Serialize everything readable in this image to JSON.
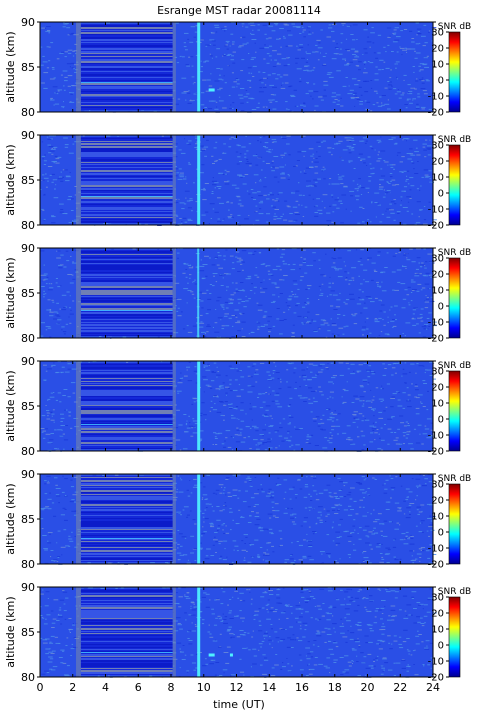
{
  "chart_data": {
    "type": "heatmap",
    "title": "Esrange MST radar 20081114",
    "xlabel": "time (UT)",
    "ylabel": "altitude (km)",
    "xlim": [
      0,
      24
    ],
    "ylim": [
      80,
      90
    ],
    "xticks": [
      "0",
      "2",
      "4",
      "6",
      "8",
      "10",
      "12",
      "14",
      "16",
      "18",
      "20",
      "22",
      "24"
    ],
    "yticks": [
      "80",
      "85",
      "90"
    ],
    "colorbar": {
      "label": "SNR dB",
      "range": [
        -20,
        30
      ],
      "ticks": [
        "-20",
        "-10",
        "0",
        "10",
        "20",
        "30"
      ],
      "colormap": "jet"
    },
    "panel_count": 6,
    "features": {
      "gray_band_hours": [
        2.2,
        2.5
      ],
      "dense_layer_block_hours": [
        2.5,
        8.1
      ],
      "gray_band2_hours": [
        8.1,
        8.3
      ],
      "vertical_stripe_hour": 9.6,
      "small_echo_hour": 10.3,
      "small_echo_alt_km": 82.5
    },
    "colors": {
      "background_noise": "#2a4fe6",
      "noise_light": "#4a8ae8",
      "dense_layer": "#1428d8",
      "gray_band": "#7888a8",
      "stripe": "#4ff0ff"
    }
  }
}
